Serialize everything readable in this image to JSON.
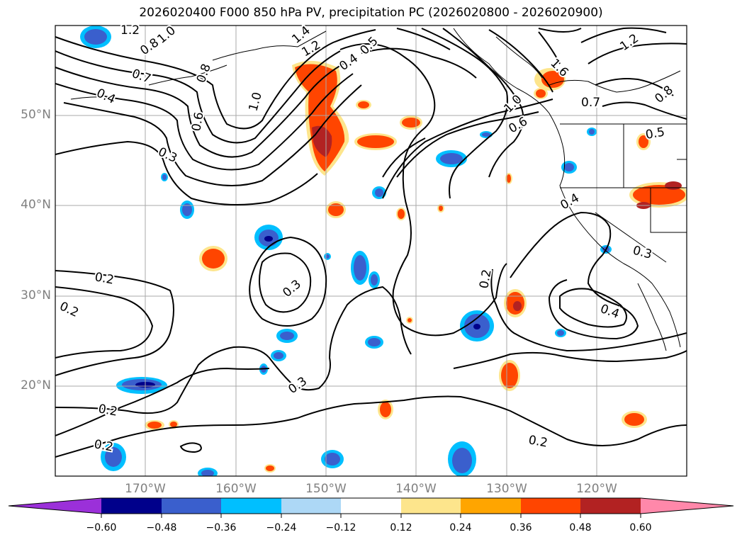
{
  "title": "2026020400 F000 850 hPa PV, precipitation PC (2026020800 - 2026020900)",
  "latitudes": [
    "50°N",
    "40°N",
    "30°N",
    "20°N"
  ],
  "longitudes": [
    "170°W",
    "160°W",
    "150°W",
    "140°W",
    "130°W",
    "120°W"
  ],
  "colorbar": {
    "ticks": [
      "−0.60",
      "−0.48",
      "−0.36",
      "−0.24",
      "−0.12",
      "0.12",
      "0.24",
      "0.36",
      "0.48",
      "0.60"
    ],
    "colors": [
      "#9b30d9",
      "#00008b",
      "#3a5fcd",
      "#00bfff",
      "#add8f6",
      "#ffffff",
      "#fde58c",
      "#ffa500",
      "#ff4500",
      "#b22222",
      "#ff88aa"
    ]
  },
  "contour_labels": [
    {
      "text": "1.2"
    },
    {
      "text": "1.0"
    },
    {
      "text": "0.8"
    },
    {
      "text": "0.7"
    },
    {
      "text": "0.4"
    },
    {
      "text": "0.8"
    },
    {
      "text": "0.6"
    },
    {
      "text": "0.3"
    },
    {
      "text": "1.0"
    },
    {
      "text": "1.4"
    },
    {
      "text": "1.2"
    },
    {
      "text": "0.4"
    },
    {
      "text": "0.5"
    },
    {
      "text": "1.0"
    },
    {
      "text": "0.6"
    },
    {
      "text": "0.7"
    },
    {
      "text": "0.8"
    },
    {
      "text": "1.2"
    },
    {
      "text": "1.6"
    },
    {
      "text": "0.5"
    },
    {
      "text": "0.4"
    },
    {
      "text": "0.2"
    },
    {
      "text": "0.2"
    },
    {
      "text": "0.3"
    },
    {
      "text": "0.3"
    },
    {
      "text": "0.2"
    },
    {
      "text": "0.4"
    },
    {
      "text": "0.2"
    },
    {
      "text": "0.3"
    },
    {
      "text": "0.2"
    },
    {
      "text": "0.2"
    }
  ]
}
